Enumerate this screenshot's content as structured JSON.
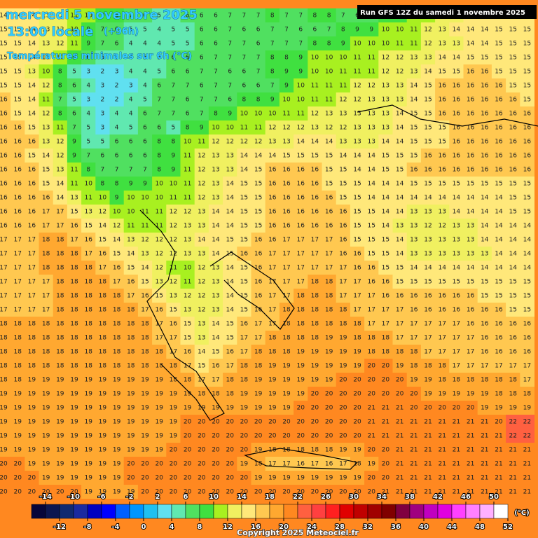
{
  "header": {
    "date": "mercredi 5 novembre 2025",
    "time": "13:00 locale",
    "lead": "(+96h)",
    "subtitle": "Températures minimales sur 6h (°C)",
    "run": "Run GFS 12Z du samedi 1 novembre 2025"
  },
  "footer": {
    "copyright": "Copyright 2025 Meteociel.fr"
  },
  "colorbar": {
    "lim": [
      -16,
      52
    ],
    "unit": "(°C)",
    "colors": [
      "#06063a",
      "#0c1650",
      "#102a70",
      "#1a2aa0",
      "#0000c0",
      "#0000ff",
      "#0060ff",
      "#0096ff",
      "#20c0f0",
      "#60e0f0",
      "#60e8b0",
      "#50e060",
      "#40e040",
      "#a8f020",
      "#f0f060",
      "#ffe87a",
      "#ffc850",
      "#ffa830",
      "#ff8820",
      "#ff6040",
      "#ff4040",
      "#ff2020",
      "#e00000",
      "#c00000",
      "#a00000",
      "#800000",
      "#800040",
      "#a00080",
      "#c000c0",
      "#e000e0",
      "#ff40ff",
      "#ff80ff",
      "#ffb0ff",
      "#ffffff"
    ],
    "ticks_top": [
      -14,
      -10,
      -6,
      -2,
      2,
      6,
      10,
      14,
      18,
      22,
      26,
      30,
      34,
      38,
      42,
      46,
      50
    ],
    "ticks_bottom": [
      -12,
      -8,
      -4,
      0,
      4,
      8,
      12,
      16,
      20,
      24,
      28,
      32,
      36,
      40,
      44,
      48,
      52
    ]
  },
  "grid": {
    "rows": [
      [
        14,
        14,
        14,
        13,
        12,
        11,
        10,
        9,
        8,
        7,
        6,
        5,
        5,
        6,
        6,
        6,
        7,
        7,
        7,
        8,
        7,
        7,
        8,
        8,
        7,
        6,
        7,
        8,
        9,
        10,
        11,
        12,
        13,
        14,
        14,
        15,
        15,
        15
      ],
      [
        15,
        15,
        14,
        13,
        12,
        10,
        9,
        7,
        6,
        5,
        5,
        4,
        5,
        5,
        6,
        6,
        7,
        6,
        6,
        7,
        7,
        6,
        6,
        7,
        8,
        9,
        9,
        10,
        10,
        11,
        12,
        13,
        14,
        14,
        14,
        15,
        15,
        15
      ],
      [
        15,
        15,
        14,
        13,
        12,
        11,
        9,
        7,
        6,
        4,
        4,
        4,
        5,
        5,
        6,
        6,
        7,
        7,
        6,
        7,
        7,
        7,
        8,
        8,
        9,
        10,
        10,
        10,
        11,
        11,
        12,
        13,
        13,
        14,
        14,
        15,
        15,
        15
      ],
      [
        15,
        15,
        14,
        13,
        10,
        8,
        6,
        5,
        5,
        4,
        5,
        5,
        6,
        6,
        6,
        7,
        7,
        7,
        7,
        8,
        8,
        9,
        10,
        10,
        10,
        11,
        11,
        12,
        12,
        13,
        13,
        14,
        14,
        15,
        15,
        15,
        15,
        15
      ],
      [
        15,
        15,
        13,
        10,
        8,
        5,
        3,
        2,
        3,
        4,
        4,
        5,
        6,
        6,
        7,
        7,
        6,
        6,
        7,
        8,
        9,
        9,
        10,
        10,
        11,
        11,
        11,
        12,
        12,
        13,
        14,
        15,
        15,
        16,
        16,
        15,
        15,
        15
      ],
      [
        15,
        15,
        14,
        12,
        8,
        6,
        4,
        3,
        2,
        3,
        4,
        6,
        7,
        7,
        6,
        7,
        7,
        6,
        6,
        7,
        9,
        10,
        11,
        11,
        11,
        12,
        12,
        13,
        13,
        14,
        15,
        16,
        16,
        16,
        16,
        16,
        15,
        15
      ],
      [
        16,
        15,
        14,
        11,
        7,
        5,
        3,
        2,
        2,
        4,
        5,
        7,
        7,
        6,
        7,
        7,
        6,
        8,
        8,
        9,
        10,
        10,
        11,
        11,
        12,
        12,
        13,
        13,
        13,
        14,
        15,
        16,
        16,
        16,
        16,
        16,
        16,
        15
      ],
      [
        16,
        15,
        14,
        12,
        8,
        6,
        4,
        3,
        4,
        4,
        6,
        7,
        7,
        6,
        7,
        8,
        9,
        10,
        10,
        10,
        11,
        11,
        12,
        13,
        13,
        13,
        13,
        13,
        14,
        15,
        15,
        16,
        16,
        16,
        16,
        16,
        16,
        16
      ],
      [
        16,
        16,
        15,
        13,
        11,
        7,
        5,
        3,
        4,
        5,
        6,
        6,
        5,
        8,
        9,
        10,
        10,
        11,
        11,
        12,
        12,
        12,
        13,
        12,
        12,
        13,
        13,
        13,
        14,
        15,
        15,
        15,
        16,
        16,
        16,
        16,
        16,
        16
      ],
      [
        16,
        16,
        16,
        13,
        12,
        9,
        5,
        5,
        6,
        6,
        6,
        8,
        8,
        10,
        11,
        12,
        12,
        12,
        12,
        13,
        13,
        14,
        14,
        14,
        13,
        13,
        13,
        14,
        14,
        15,
        15,
        15,
        16,
        16,
        16,
        16,
        16,
        16
      ],
      [
        16,
        16,
        15,
        14,
        12,
        9,
        7,
        6,
        6,
        6,
        6,
        8,
        9,
        11,
        12,
        13,
        13,
        14,
        14,
        14,
        15,
        15,
        15,
        15,
        14,
        14,
        14,
        15,
        15,
        15,
        16,
        16,
        16,
        16,
        16,
        16,
        16,
        16
      ],
      [
        16,
        16,
        16,
        15,
        13,
        11,
        8,
        7,
        7,
        7,
        7,
        8,
        9,
        11,
        12,
        13,
        13,
        14,
        15,
        16,
        16,
        16,
        16,
        15,
        15,
        14,
        14,
        15,
        15,
        16,
        16,
        16,
        16,
        16,
        16,
        16,
        16,
        16
      ],
      [
        16,
        16,
        16,
        15,
        14,
        11,
        10,
        8,
        8,
        9,
        9,
        10,
        10,
        11,
        12,
        13,
        14,
        15,
        15,
        16,
        16,
        16,
        16,
        15,
        15,
        15,
        14,
        14,
        14,
        15,
        15,
        15,
        15,
        15,
        15,
        15,
        15,
        15
      ],
      [
        16,
        16,
        16,
        16,
        14,
        13,
        11,
        10,
        9,
        10,
        10,
        10,
        11,
        11,
        12,
        13,
        14,
        15,
        15,
        16,
        16,
        16,
        16,
        16,
        15,
        15,
        14,
        14,
        14,
        14,
        14,
        14,
        14,
        14,
        14,
        14,
        15,
        15
      ],
      [
        16,
        16,
        16,
        17,
        17,
        15,
        13,
        12,
        10,
        10,
        11,
        11,
        12,
        12,
        13,
        14,
        14,
        15,
        15,
        16,
        16,
        16,
        16,
        16,
        16,
        15,
        15,
        14,
        14,
        13,
        13,
        13,
        14,
        14,
        14,
        14,
        15,
        15
      ],
      [
        16,
        16,
        16,
        17,
        17,
        16,
        15,
        14,
        12,
        11,
        11,
        11,
        12,
        13,
        13,
        14,
        14,
        15,
        15,
        16,
        16,
        16,
        16,
        16,
        16,
        15,
        15,
        14,
        13,
        13,
        12,
        12,
        13,
        13,
        14,
        14,
        14,
        14
      ],
      [
        17,
        17,
        17,
        18,
        18,
        17,
        16,
        15,
        14,
        13,
        12,
        12,
        12,
        13,
        14,
        14,
        15,
        15,
        16,
        16,
        17,
        17,
        17,
        17,
        16,
        15,
        15,
        15,
        14,
        13,
        13,
        13,
        13,
        13,
        14,
        14,
        14,
        14
      ],
      [
        17,
        17,
        17,
        18,
        18,
        18,
        17,
        16,
        15,
        14,
        13,
        12,
        12,
        13,
        13,
        14,
        15,
        16,
        16,
        17,
        17,
        17,
        17,
        17,
        16,
        16,
        15,
        15,
        14,
        13,
        13,
        13,
        13,
        13,
        13,
        14,
        14,
        14
      ],
      [
        17,
        17,
        17,
        18,
        18,
        18,
        18,
        17,
        16,
        15,
        14,
        12,
        11,
        10,
        12,
        13,
        14,
        15,
        16,
        17,
        17,
        17,
        17,
        17,
        17,
        16,
        16,
        15,
        15,
        14,
        14,
        14,
        14,
        14,
        14,
        14,
        14,
        14
      ],
      [
        17,
        17,
        17,
        17,
        18,
        18,
        18,
        18,
        17,
        16,
        15,
        13,
        12,
        11,
        12,
        13,
        14,
        15,
        16,
        17,
        17,
        17,
        18,
        18,
        17,
        17,
        16,
        16,
        15,
        15,
        15,
        15,
        15,
        15,
        15,
        15,
        15,
        15
      ],
      [
        17,
        17,
        17,
        17,
        18,
        18,
        18,
        18,
        18,
        17,
        16,
        15,
        13,
        12,
        12,
        13,
        14,
        15,
        16,
        17,
        17,
        18,
        18,
        18,
        17,
        17,
        17,
        16,
        16,
        16,
        16,
        16,
        16,
        16,
        15,
        15,
        15,
        15
      ],
      [
        17,
        17,
        17,
        17,
        18,
        18,
        18,
        18,
        18,
        18,
        17,
        16,
        15,
        13,
        12,
        13,
        14,
        15,
        16,
        17,
        18,
        18,
        18,
        18,
        18,
        17,
        17,
        17,
        17,
        16,
        16,
        16,
        16,
        16,
        16,
        16,
        15,
        15
      ],
      [
        18,
        18,
        18,
        18,
        18,
        18,
        18,
        18,
        18,
        18,
        18,
        17,
        16,
        15,
        13,
        14,
        15,
        16,
        17,
        17,
        18,
        18,
        18,
        18,
        18,
        18,
        17,
        17,
        17,
        17,
        17,
        17,
        17,
        16,
        16,
        16,
        16,
        16
      ],
      [
        18,
        18,
        18,
        18,
        18,
        18,
        18,
        18,
        18,
        18,
        18,
        17,
        17,
        15,
        13,
        14,
        15,
        17,
        17,
        18,
        18,
        18,
        18,
        19,
        19,
        18,
        18,
        18,
        17,
        17,
        17,
        17,
        17,
        17,
        16,
        16,
        16,
        16
      ],
      [
        18,
        18,
        18,
        18,
        18,
        18,
        18,
        18,
        18,
        18,
        18,
        18,
        17,
        16,
        14,
        15,
        16,
        17,
        18,
        18,
        18,
        19,
        19,
        19,
        19,
        19,
        18,
        18,
        18,
        18,
        17,
        17,
        17,
        17,
        16,
        16,
        16,
        16
      ],
      [
        18,
        18,
        18,
        18,
        18,
        18,
        18,
        18,
        18,
        18,
        18,
        18,
        18,
        17,
        15,
        16,
        17,
        18,
        18,
        19,
        19,
        19,
        19,
        19,
        19,
        19,
        20,
        20,
        19,
        18,
        18,
        18,
        17,
        17,
        17,
        17,
        17,
        17
      ],
      [
        18,
        18,
        19,
        19,
        19,
        19,
        19,
        19,
        19,
        19,
        19,
        19,
        18,
        18,
        17,
        17,
        18,
        18,
        19,
        19,
        19,
        19,
        19,
        19,
        20,
        20,
        20,
        20,
        20,
        19,
        19,
        18,
        18,
        18,
        18,
        18,
        18,
        17
      ],
      [
        19,
        19,
        19,
        19,
        19,
        19,
        19,
        19,
        19,
        19,
        19,
        19,
        19,
        19,
        18,
        18,
        18,
        19,
        19,
        19,
        19,
        19,
        20,
        20,
        20,
        20,
        20,
        20,
        20,
        20,
        19,
        19,
        19,
        19,
        19,
        18,
        18,
        18
      ],
      [
        19,
        19,
        19,
        19,
        19,
        19,
        19,
        19,
        19,
        19,
        19,
        19,
        19,
        19,
        19,
        19,
        19,
        19,
        19,
        19,
        19,
        20,
        20,
        20,
        20,
        20,
        21,
        21,
        21,
        20,
        20,
        20,
        20,
        20,
        19,
        19,
        19,
        19
      ],
      [
        19,
        19,
        19,
        19,
        19,
        19,
        19,
        19,
        19,
        19,
        19,
        19,
        19,
        20,
        20,
        20,
        20,
        20,
        20,
        20,
        20,
        20,
        20,
        20,
        20,
        20,
        21,
        21,
        21,
        21,
        21,
        21,
        21,
        21,
        21,
        20,
        22,
        22
      ],
      [
        19,
        19,
        19,
        19,
        19,
        19,
        19,
        19,
        19,
        19,
        19,
        19,
        19,
        20,
        20,
        20,
        20,
        20,
        20,
        20,
        20,
        20,
        20,
        20,
        20,
        20,
        21,
        21,
        21,
        21,
        21,
        21,
        21,
        21,
        21,
        21,
        22,
        22
      ],
      [
        19,
        19,
        19,
        19,
        19,
        19,
        19,
        19,
        19,
        19,
        19,
        19,
        20,
        20,
        20,
        20,
        20,
        20,
        19,
        18,
        18,
        18,
        18,
        18,
        19,
        19,
        20,
        20,
        21,
        21,
        21,
        21,
        21,
        21,
        21,
        21,
        21,
        21
      ],
      [
        20,
        20,
        19,
        19,
        19,
        19,
        19,
        19,
        19,
        20,
        20,
        20,
        20,
        20,
        20,
        20,
        20,
        19,
        18,
        17,
        17,
        16,
        17,
        16,
        17,
        18,
        19,
        20,
        21,
        21,
        21,
        21,
        21,
        21,
        21,
        21,
        21,
        21
      ],
      [
        20,
        20,
        20,
        19,
        19,
        19,
        19,
        19,
        19,
        20,
        20,
        20,
        20,
        20,
        20,
        20,
        20,
        20,
        19,
        19,
        19,
        19,
        19,
        19,
        19,
        19,
        20,
        20,
        21,
        21,
        21,
        21,
        21,
        21,
        21,
        21,
        21,
        21
      ],
      [
        20,
        20,
        20,
        20,
        20,
        20,
        19,
        19,
        19,
        19,
        20,
        20,
        20,
        20,
        20,
        20,
        20,
        20,
        20,
        20,
        20,
        20,
        20,
        20,
        20,
        20,
        20,
        21,
        21,
        21,
        21,
        21,
        21,
        21,
        21,
        21,
        21,
        21
      ]
    ]
  }
}
